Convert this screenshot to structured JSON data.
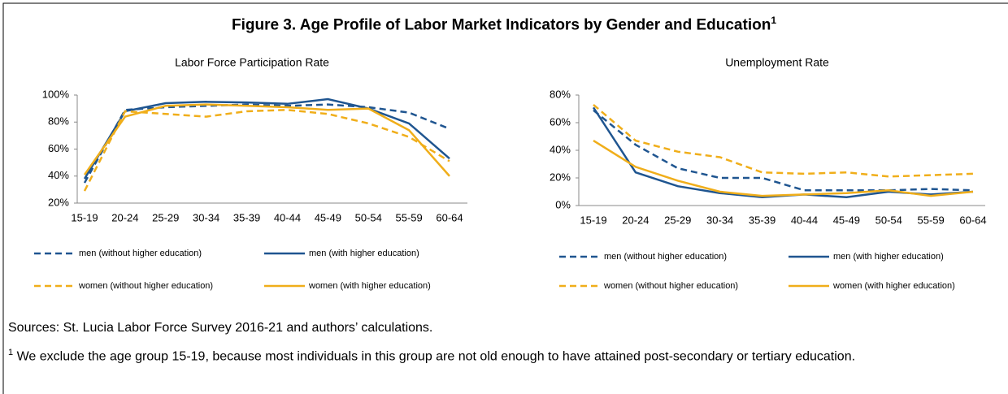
{
  "figure": {
    "title": "Figure 3. Age Profile of Labor Market Indicators by Gender and Education",
    "title_mark": "1"
  },
  "chart_data": [
    {
      "type": "line",
      "title": "Labor Force Participation Rate",
      "categories": [
        "15-19",
        "20-24",
        "25-29",
        "30-34",
        "35-39",
        "40-44",
        "45-49",
        "50-54",
        "55-59",
        "60-64"
      ],
      "ylim": [
        20,
        100
      ],
      "yticks": [
        {
          "value": 20,
          "label": "20%"
        },
        {
          "value": 40,
          "label": "40%"
        },
        {
          "value": 60,
          "label": "60%"
        },
        {
          "value": 80,
          "label": "80%"
        },
        {
          "value": 100,
          "label": "100%"
        }
      ],
      "grid": false,
      "series": [
        {
          "name": "men (without higher education)",
          "color": "#1f5590",
          "dash": "dashed",
          "values": [
            35,
            89,
            91,
            92,
            93,
            92,
            93,
            91,
            87,
            75
          ]
        },
        {
          "name": "men (with higher education)",
          "color": "#1f5590",
          "dash": "solid",
          "values": [
            38,
            88,
            94,
            95,
            94.5,
            93.5,
            97,
            90,
            79,
            53
          ]
        },
        {
          "name": "women (without higher education)",
          "color": "#f0ae1a",
          "dash": "dashed",
          "values": [
            29,
            88,
            86,
            84,
            88,
            89,
            86,
            79,
            69,
            51
          ]
        },
        {
          "name": "women (with higher education)",
          "color": "#f0ae1a",
          "dash": "solid",
          "values": [
            41,
            84,
            92,
            93,
            92,
            91,
            89,
            90,
            74,
            40
          ]
        }
      ]
    },
    {
      "type": "line",
      "title": "Unemployment Rate",
      "categories": [
        "15-19",
        "20-24",
        "25-29",
        "30-34",
        "35-39",
        "40-44",
        "45-49",
        "50-54",
        "55-59",
        "60-64"
      ],
      "ylim": [
        0,
        80
      ],
      "yticks": [
        {
          "value": 0,
          "label": "0%"
        },
        {
          "value": 20,
          "label": "20%"
        },
        {
          "value": 40,
          "label": "40%"
        },
        {
          "value": 60,
          "label": "60%"
        },
        {
          "value": 80,
          "label": "80%"
        }
      ],
      "grid": false,
      "series": [
        {
          "name": "men (without higher education)",
          "color": "#1f5590",
          "dash": "dashed",
          "values": [
            69,
            44,
            27,
            20,
            20,
            11,
            11,
            11,
            12,
            11
          ]
        },
        {
          "name": "men (with higher education)",
          "color": "#1f5590",
          "dash": "solid",
          "values": [
            71,
            24,
            14,
            9,
            6,
            8,
            6,
            10,
            8,
            10
          ]
        },
        {
          "name": "women (without higher education)",
          "color": "#f0ae1a",
          "dash": "dashed",
          "values": [
            73,
            47,
            39,
            35,
            24,
            23,
            24,
            21,
            22,
            23
          ]
        },
        {
          "name": "women (with higher education)",
          "color": "#f0ae1a",
          "dash": "solid",
          "values": [
            47,
            28,
            18,
            10,
            7,
            8,
            9,
            11,
            7,
            10
          ]
        }
      ]
    }
  ],
  "sources": "Sources: St. Lucia Labor Force Survey 2016-21 and authors’ calculations.",
  "footnote": {
    "mark": "1",
    "text": "We exclude the age group 15-19, because most individuals in this group are not old enough to have attained post-secondary or tertiary education."
  }
}
